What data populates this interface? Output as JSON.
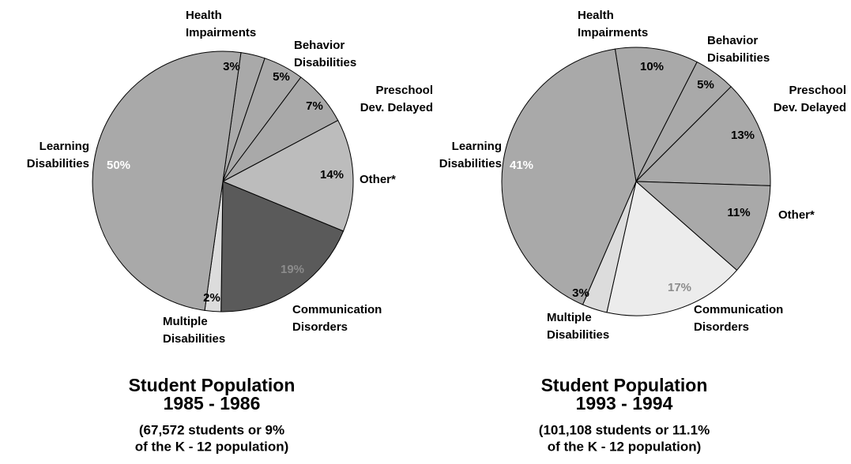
{
  "chart_data": [
    {
      "type": "pie",
      "title": "Student Population",
      "period": "1985 - 1986",
      "note": [
        "(67,572 students or 9%",
        "of the K - 12 population)"
      ],
      "categories": [
        [
          "Health",
          "Impairments"
        ],
        [
          "Behavior",
          "Disabilities"
        ],
        [
          "Preschool",
          "Dev. Delayed"
        ],
        [
          "Other*"
        ],
        [
          "Communication",
          "Disorders"
        ],
        [
          "Multiple",
          "Disabilities"
        ],
        [
          "Learning",
          "Disabilities"
        ]
      ],
      "values": [
        3,
        5,
        7,
        14,
        19,
        2,
        50
      ],
      "value_labels": [
        "3%",
        "5%",
        "7%",
        "14%",
        "19%",
        "2%",
        "50%"
      ],
      "colors": [
        "#a9a9a9",
        "#a9a9a9",
        "#a9a9a9",
        "#bcbcbc",
        "#5a5a5a",
        "#dcdcdc",
        "#a9a9a9"
      ],
      "label_colors": [
        "#000000",
        "#000000",
        "#000000",
        "#000000",
        "#8c8c8c",
        "#000000",
        "#ffffff"
      ]
    },
    {
      "type": "pie",
      "title": "Student Population",
      "period": "1993 - 1994",
      "note": [
        "(101,108 students or 11.1%",
        "of the K - 12 population)"
      ],
      "categories": [
        [
          "Health",
          "Impairments"
        ],
        [
          "Behavior",
          "Disabilities"
        ],
        [
          "Preschool",
          "Dev. Delayed"
        ],
        [
          "Other*"
        ],
        [
          "Communication",
          "Disorders"
        ],
        [
          "Multiple",
          "Disabilities"
        ],
        [
          "Learning",
          "Disabilities"
        ]
      ],
      "values": [
        10,
        5,
        13,
        11,
        17,
        3,
        41
      ],
      "value_labels": [
        "10%",
        "5%",
        "13%",
        "11%",
        "17%",
        "3%",
        "41%"
      ],
      "colors": [
        "#a9a9a9",
        "#a9a9a9",
        "#a9a9a9",
        "#a9a9a9",
        "#ececec",
        "#dcdcdc",
        "#a9a9a9"
      ],
      "label_colors": [
        "#000000",
        "#000000",
        "#000000",
        "#000000",
        "#8c8c8c",
        "#000000",
        "#ffffff"
      ]
    }
  ]
}
